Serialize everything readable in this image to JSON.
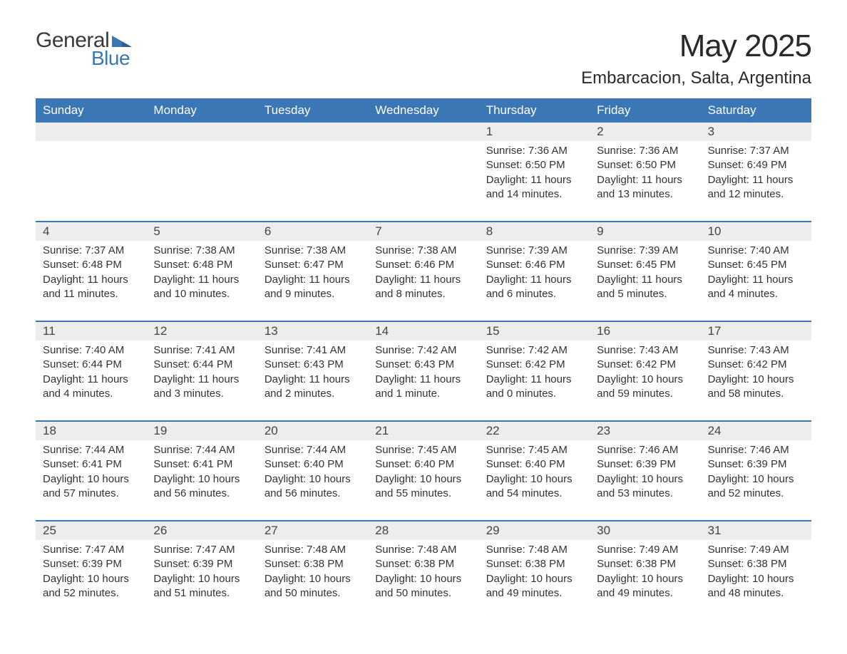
{
  "brand": {
    "word1": "General",
    "word2": "Blue",
    "logo_color": "#3b76b5",
    "text_color": "#3a3a3a"
  },
  "title": "May 2025",
  "location": "Embarcacion, Salta, Argentina",
  "colors": {
    "header_bg": "#3b76b5",
    "header_text": "#ffffff",
    "daynum_bg": "#ededed",
    "text": "#333333",
    "rule": "#3b76b5",
    "background": "#ffffff"
  },
  "day_names": [
    "Sunday",
    "Monday",
    "Tuesday",
    "Wednesday",
    "Thursday",
    "Friday",
    "Saturday"
  ],
  "weeks": [
    {
      "days": [
        {
          "n": "",
          "sunrise": "",
          "sunset": "",
          "daylight": ""
        },
        {
          "n": "",
          "sunrise": "",
          "sunset": "",
          "daylight": ""
        },
        {
          "n": "",
          "sunrise": "",
          "sunset": "",
          "daylight": ""
        },
        {
          "n": "",
          "sunrise": "",
          "sunset": "",
          "daylight": ""
        },
        {
          "n": "1",
          "sunrise": "Sunrise: 7:36 AM",
          "sunset": "Sunset: 6:50 PM",
          "daylight": "Daylight: 11 hours and 14 minutes."
        },
        {
          "n": "2",
          "sunrise": "Sunrise: 7:36 AM",
          "sunset": "Sunset: 6:50 PM",
          "daylight": "Daylight: 11 hours and 13 minutes."
        },
        {
          "n": "3",
          "sunrise": "Sunrise: 7:37 AM",
          "sunset": "Sunset: 6:49 PM",
          "daylight": "Daylight: 11 hours and 12 minutes."
        }
      ]
    },
    {
      "days": [
        {
          "n": "4",
          "sunrise": "Sunrise: 7:37 AM",
          "sunset": "Sunset: 6:48 PM",
          "daylight": "Daylight: 11 hours and 11 minutes."
        },
        {
          "n": "5",
          "sunrise": "Sunrise: 7:38 AM",
          "sunset": "Sunset: 6:48 PM",
          "daylight": "Daylight: 11 hours and 10 minutes."
        },
        {
          "n": "6",
          "sunrise": "Sunrise: 7:38 AM",
          "sunset": "Sunset: 6:47 PM",
          "daylight": "Daylight: 11 hours and 9 minutes."
        },
        {
          "n": "7",
          "sunrise": "Sunrise: 7:38 AM",
          "sunset": "Sunset: 6:46 PM",
          "daylight": "Daylight: 11 hours and 8 minutes."
        },
        {
          "n": "8",
          "sunrise": "Sunrise: 7:39 AM",
          "sunset": "Sunset: 6:46 PM",
          "daylight": "Daylight: 11 hours and 6 minutes."
        },
        {
          "n": "9",
          "sunrise": "Sunrise: 7:39 AM",
          "sunset": "Sunset: 6:45 PM",
          "daylight": "Daylight: 11 hours and 5 minutes."
        },
        {
          "n": "10",
          "sunrise": "Sunrise: 7:40 AM",
          "sunset": "Sunset: 6:45 PM",
          "daylight": "Daylight: 11 hours and 4 minutes."
        }
      ]
    },
    {
      "days": [
        {
          "n": "11",
          "sunrise": "Sunrise: 7:40 AM",
          "sunset": "Sunset: 6:44 PM",
          "daylight": "Daylight: 11 hours and 4 minutes."
        },
        {
          "n": "12",
          "sunrise": "Sunrise: 7:41 AM",
          "sunset": "Sunset: 6:44 PM",
          "daylight": "Daylight: 11 hours and 3 minutes."
        },
        {
          "n": "13",
          "sunrise": "Sunrise: 7:41 AM",
          "sunset": "Sunset: 6:43 PM",
          "daylight": "Daylight: 11 hours and 2 minutes."
        },
        {
          "n": "14",
          "sunrise": "Sunrise: 7:42 AM",
          "sunset": "Sunset: 6:43 PM",
          "daylight": "Daylight: 11 hours and 1 minute."
        },
        {
          "n": "15",
          "sunrise": "Sunrise: 7:42 AM",
          "sunset": "Sunset: 6:42 PM",
          "daylight": "Daylight: 11 hours and 0 minutes."
        },
        {
          "n": "16",
          "sunrise": "Sunrise: 7:43 AM",
          "sunset": "Sunset: 6:42 PM",
          "daylight": "Daylight: 10 hours and 59 minutes."
        },
        {
          "n": "17",
          "sunrise": "Sunrise: 7:43 AM",
          "sunset": "Sunset: 6:42 PM",
          "daylight": "Daylight: 10 hours and 58 minutes."
        }
      ]
    },
    {
      "days": [
        {
          "n": "18",
          "sunrise": "Sunrise: 7:44 AM",
          "sunset": "Sunset: 6:41 PM",
          "daylight": "Daylight: 10 hours and 57 minutes."
        },
        {
          "n": "19",
          "sunrise": "Sunrise: 7:44 AM",
          "sunset": "Sunset: 6:41 PM",
          "daylight": "Daylight: 10 hours and 56 minutes."
        },
        {
          "n": "20",
          "sunrise": "Sunrise: 7:44 AM",
          "sunset": "Sunset: 6:40 PM",
          "daylight": "Daylight: 10 hours and 56 minutes."
        },
        {
          "n": "21",
          "sunrise": "Sunrise: 7:45 AM",
          "sunset": "Sunset: 6:40 PM",
          "daylight": "Daylight: 10 hours and 55 minutes."
        },
        {
          "n": "22",
          "sunrise": "Sunrise: 7:45 AM",
          "sunset": "Sunset: 6:40 PM",
          "daylight": "Daylight: 10 hours and 54 minutes."
        },
        {
          "n": "23",
          "sunrise": "Sunrise: 7:46 AM",
          "sunset": "Sunset: 6:39 PM",
          "daylight": "Daylight: 10 hours and 53 minutes."
        },
        {
          "n": "24",
          "sunrise": "Sunrise: 7:46 AM",
          "sunset": "Sunset: 6:39 PM",
          "daylight": "Daylight: 10 hours and 52 minutes."
        }
      ]
    },
    {
      "days": [
        {
          "n": "25",
          "sunrise": "Sunrise: 7:47 AM",
          "sunset": "Sunset: 6:39 PM",
          "daylight": "Daylight: 10 hours and 52 minutes."
        },
        {
          "n": "26",
          "sunrise": "Sunrise: 7:47 AM",
          "sunset": "Sunset: 6:39 PM",
          "daylight": "Daylight: 10 hours and 51 minutes."
        },
        {
          "n": "27",
          "sunrise": "Sunrise: 7:48 AM",
          "sunset": "Sunset: 6:38 PM",
          "daylight": "Daylight: 10 hours and 50 minutes."
        },
        {
          "n": "28",
          "sunrise": "Sunrise: 7:48 AM",
          "sunset": "Sunset: 6:38 PM",
          "daylight": "Daylight: 10 hours and 50 minutes."
        },
        {
          "n": "29",
          "sunrise": "Sunrise: 7:48 AM",
          "sunset": "Sunset: 6:38 PM",
          "daylight": "Daylight: 10 hours and 49 minutes."
        },
        {
          "n": "30",
          "sunrise": "Sunrise: 7:49 AM",
          "sunset": "Sunset: 6:38 PM",
          "daylight": "Daylight: 10 hours and 49 minutes."
        },
        {
          "n": "31",
          "sunrise": "Sunrise: 7:49 AM",
          "sunset": "Sunset: 6:38 PM",
          "daylight": "Daylight: 10 hours and 48 minutes."
        }
      ]
    }
  ]
}
